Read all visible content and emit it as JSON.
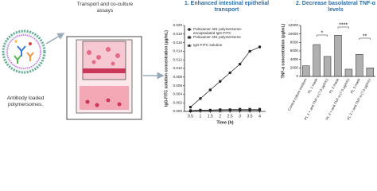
{
  "illustration": {
    "polymersome_label": "Antibody loaded polymersomes.",
    "assay_label": "Transport and co-culture assays"
  },
  "chart_data": [
    {
      "type": "line",
      "title": "1. Enhanced intestinal epithelial transport",
      "x_label": "Time (h)",
      "y_label": "IgG-FITC solution concentration (µg/mL)",
      "x": [
        0.5,
        1,
        1.5,
        2,
        2.5,
        3,
        3.5,
        4
      ],
      "series": [
        {
          "name": "Poloxamer 401 polymersome-encapsulated IgG-FITC",
          "color": "#222222",
          "marker": "circle",
          "values": [
            0.001,
            0.003,
            0.005,
            0.007,
            0.009,
            0.011,
            0.014,
            0.015
          ]
        },
        {
          "name": "Poloxamer 401 polymersome",
          "color": "#222222",
          "marker": "square",
          "values": [
            0.0002,
            0.0003,
            0.0003,
            0.0004,
            0.0004,
            0.0005,
            0.0005,
            0.0005
          ]
        },
        {
          "name": "IgG-FITC solution",
          "color": "#222222",
          "marker": "triangle",
          "values": [
            0.0001,
            0.0002,
            0.0002,
            0.0002,
            0.0003,
            0.0003,
            0.0003,
            0.0003
          ]
        }
      ],
      "xlim": [
        0.2,
        4.3
      ],
      "xticks": [
        0.5,
        1,
        1.5,
        2,
        2.5,
        3,
        3.5,
        4
      ],
      "ylim": [
        0,
        0.02
      ],
      "yticks": [
        {
          "value": 0,
          "label": "0.000"
        },
        {
          "value": 0.002,
          "label": "0.002"
        },
        {
          "value": 0.004,
          "label": "0.004"
        },
        {
          "value": 0.006,
          "label": "0.006"
        },
        {
          "value": 0.008,
          "label": "0.008"
        },
        {
          "value": 0.01,
          "label": "0.010"
        },
        {
          "value": 0.012,
          "label": "0.012"
        },
        {
          "value": 0.014,
          "label": "0.014"
        },
        {
          "value": 0.016,
          "label": "0.016"
        },
        {
          "value": 0.018,
          "label": "0.018"
        },
        {
          "value": 0.02,
          "label": "0.020"
        }
      ],
      "legend": "upper left"
    },
    {
      "type": "bar",
      "title": "2. Decrease basolateral TNF-α levels",
      "y_label": "TNF-α concentration (pg/mL)",
      "categories": [
        "Control culture medium",
        "PL 1 mask",
        "PL 1 + anti TNF-α (7.5 µg/mL)",
        "PL 2 mask",
        "PL 2 + anti TNF-α (7.5 µg/mL)",
        "PL 3 mask",
        "PL 3 + anti TNF-α (7.5 µg/mL)"
      ],
      "values": [
        2500,
        7500,
        4700,
        9700,
        1700,
        5200,
        2000
      ],
      "color": "#b0b0b0",
      "ylim": [
        0,
        12000
      ],
      "yticks": [
        0,
        2000,
        4000,
        6000,
        8000,
        10000,
        12000
      ],
      "annotations": [
        "*",
        "****",
        "**"
      ]
    }
  ]
}
